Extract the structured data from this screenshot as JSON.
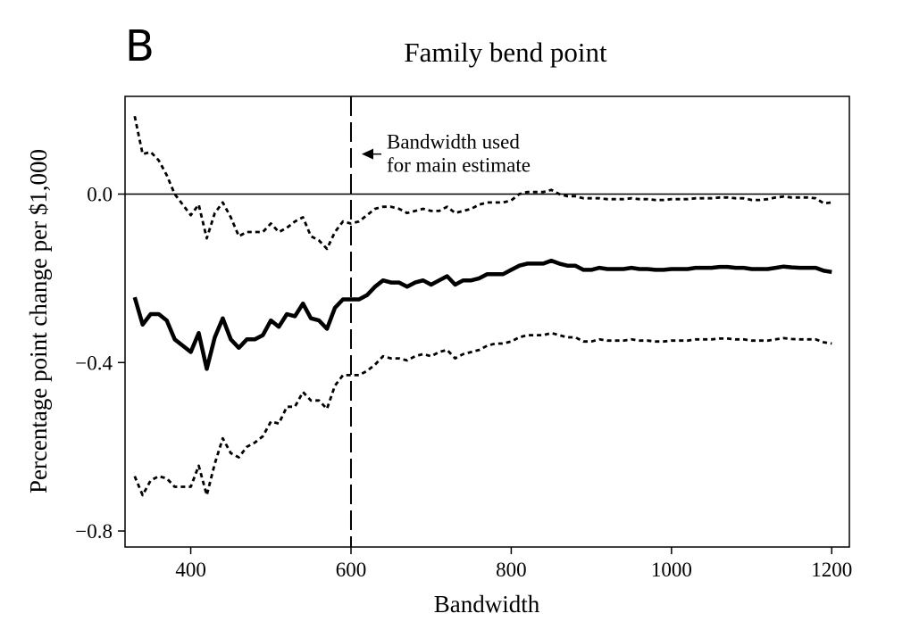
{
  "panel_label": "B",
  "chart_data": {
    "type": "line",
    "title": "Family bend point",
    "xlabel": "Bandwidth",
    "ylabel": "Percentage point change per $1,000",
    "xlim": [
      318,
      1222
    ],
    "ylim": [
      -0.838,
      0.232
    ],
    "x_ticks": [
      400,
      600,
      800,
      1000,
      1200
    ],
    "x_tick_labels": [
      "400",
      "600",
      "800",
      "1000",
      "1200"
    ],
    "y_ticks": [
      0.0,
      -0.4,
      -0.8
    ],
    "y_tick_labels": [
      "0.0",
      "−0.4",
      "−0.8"
    ],
    "grid": false,
    "legend": "none",
    "reference_lines": [
      {
        "orientation": "horizontal",
        "value": 0.0,
        "style": "solid"
      },
      {
        "orientation": "vertical",
        "value": 600,
        "style": "dashed"
      }
    ],
    "annotations": [
      {
        "text_lines": [
          "Bandwidth used",
          "for main estimate"
        ],
        "points_to_x": 600,
        "at_y": 0.095
      }
    ],
    "x": [
      330,
      340,
      350,
      360,
      370,
      380,
      390,
      400,
      410,
      420,
      430,
      440,
      450,
      460,
      470,
      480,
      490,
      500,
      510,
      520,
      530,
      540,
      550,
      560,
      570,
      580,
      590,
      600,
      610,
      620,
      630,
      640,
      650,
      660,
      670,
      680,
      690,
      700,
      710,
      720,
      730,
      740,
      750,
      760,
      770,
      780,
      790,
      800,
      810,
      820,
      830,
      840,
      850,
      860,
      870,
      880,
      890,
      900,
      910,
      920,
      930,
      940,
      950,
      960,
      970,
      980,
      990,
      1000,
      1010,
      1020,
      1030,
      1040,
      1050,
      1060,
      1070,
      1080,
      1090,
      1100,
      1110,
      1120,
      1130,
      1140,
      1150,
      1160,
      1170,
      1180,
      1190,
      1200
    ],
    "series": [
      {
        "role": "estimate",
        "style": "solid-thick",
        "values": [
          -0.245,
          -0.31,
          -0.285,
          -0.285,
          -0.3,
          -0.345,
          -0.36,
          -0.375,
          -0.33,
          -0.415,
          -0.34,
          -0.295,
          -0.345,
          -0.365,
          -0.345,
          -0.345,
          -0.335,
          -0.3,
          -0.315,
          -0.285,
          -0.29,
          -0.26,
          -0.295,
          -0.3,
          -0.32,
          -0.27,
          -0.25,
          -0.25,
          -0.25,
          -0.24,
          -0.22,
          -0.205,
          -0.21,
          -0.21,
          -0.22,
          -0.21,
          -0.205,
          -0.215,
          -0.205,
          -0.195,
          -0.215,
          -0.205,
          -0.205,
          -0.2,
          -0.19,
          -0.19,
          -0.19,
          -0.18,
          -0.17,
          -0.165,
          -0.165,
          -0.165,
          -0.158,
          -0.165,
          -0.17,
          -0.17,
          -0.18,
          -0.18,
          -0.175,
          -0.178,
          -0.178,
          -0.178,
          -0.175,
          -0.178,
          -0.178,
          -0.18,
          -0.18,
          -0.178,
          -0.178,
          -0.178,
          -0.175,
          -0.175,
          -0.175,
          -0.173,
          -0.173,
          -0.175,
          -0.175,
          -0.178,
          -0.178,
          -0.178,
          -0.175,
          -0.172,
          -0.174,
          -0.175,
          -0.175,
          -0.175,
          -0.182,
          -0.185
        ]
      },
      {
        "role": "upper confidence bound",
        "style": "dotted",
        "values": [
          0.185,
          0.095,
          0.1,
          0.08,
          0.045,
          0.0,
          -0.025,
          -0.05,
          -0.025,
          -0.105,
          -0.045,
          -0.02,
          -0.055,
          -0.1,
          -0.09,
          -0.09,
          -0.09,
          -0.07,
          -0.09,
          -0.08,
          -0.065,
          -0.055,
          -0.1,
          -0.11,
          -0.13,
          -0.09,
          -0.065,
          -0.07,
          -0.065,
          -0.05,
          -0.035,
          -0.03,
          -0.03,
          -0.035,
          -0.045,
          -0.04,
          -0.035,
          -0.04,
          -0.04,
          -0.03,
          -0.045,
          -0.04,
          -0.035,
          -0.025,
          -0.02,
          -0.02,
          -0.02,
          -0.015,
          0.0,
          0.005,
          0.005,
          0.005,
          0.01,
          0.0,
          -0.005,
          -0.005,
          -0.01,
          -0.01,
          -0.01,
          -0.012,
          -0.012,
          -0.012,
          -0.01,
          -0.012,
          -0.012,
          -0.014,
          -0.014,
          -0.012,
          -0.012,
          -0.012,
          -0.01,
          -0.01,
          -0.01,
          -0.008,
          -0.008,
          -0.01,
          -0.01,
          -0.014,
          -0.014,
          -0.012,
          -0.008,
          -0.006,
          -0.008,
          -0.008,
          -0.008,
          -0.01,
          -0.022,
          -0.02
        ]
      },
      {
        "role": "lower confidence bound",
        "style": "dotted",
        "values": [
          -0.67,
          -0.715,
          -0.68,
          -0.67,
          -0.675,
          -0.695,
          -0.695,
          -0.695,
          -0.645,
          -0.715,
          -0.64,
          -0.58,
          -0.615,
          -0.625,
          -0.6,
          -0.59,
          -0.575,
          -0.54,
          -0.545,
          -0.505,
          -0.505,
          -0.47,
          -0.49,
          -0.49,
          -0.51,
          -0.455,
          -0.43,
          -0.43,
          -0.43,
          -0.42,
          -0.405,
          -0.385,
          -0.39,
          -0.39,
          -0.395,
          -0.385,
          -0.38,
          -0.385,
          -0.375,
          -0.37,
          -0.39,
          -0.38,
          -0.375,
          -0.37,
          -0.36,
          -0.355,
          -0.355,
          -0.35,
          -0.34,
          -0.335,
          -0.335,
          -0.335,
          -0.33,
          -0.335,
          -0.34,
          -0.34,
          -0.35,
          -0.35,
          -0.345,
          -0.348,
          -0.348,
          -0.348,
          -0.345,
          -0.348,
          -0.348,
          -0.35,
          -0.35,
          -0.348,
          -0.348,
          -0.348,
          -0.345,
          -0.345,
          -0.345,
          -0.343,
          -0.343,
          -0.345,
          -0.345,
          -0.348,
          -0.348,
          -0.348,
          -0.345,
          -0.342,
          -0.344,
          -0.345,
          -0.345,
          -0.345,
          -0.352,
          -0.355
        ]
      }
    ]
  }
}
